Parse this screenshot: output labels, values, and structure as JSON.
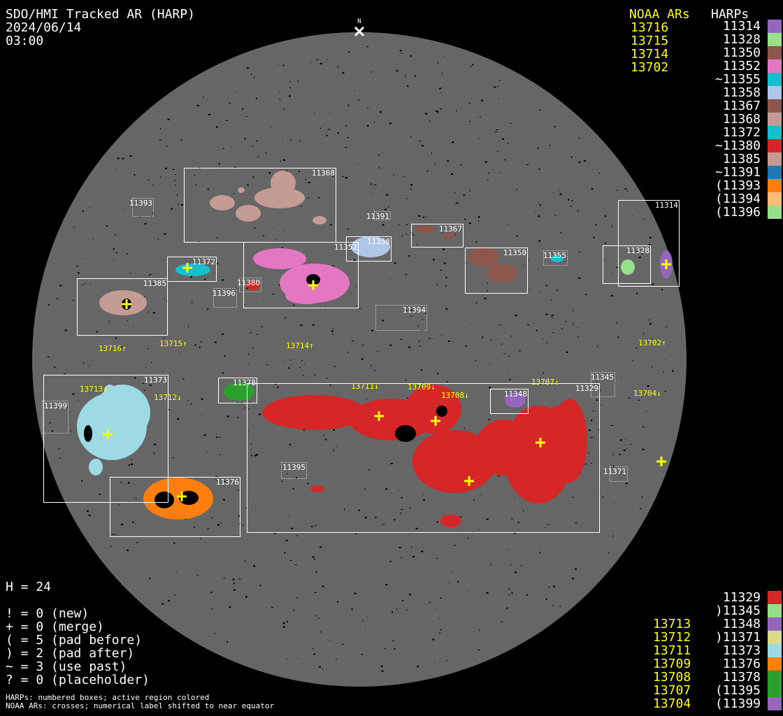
{
  "header": {
    "title": "SDO/HMI Tracked AR (HARP)",
    "date": "2024/06/14",
    "time": "03:00"
  },
  "north_marker": {
    "label": "N",
    "icon": "x-mark-icon"
  },
  "legend_top": {
    "noaa_heading": "NOAA ARs",
    "harps_heading": "HARPs",
    "noaa": [
      "13716",
      "13715",
      "13714",
      "13702"
    ],
    "harps": [
      {
        "label": "11314",
        "color": "#9467bd"
      },
      {
        "label": "11328",
        "color": "#98df8a"
      },
      {
        "label": "11350",
        "color": "#8c564b"
      },
      {
        "label": "11352",
        "color": "#e377c2"
      },
      {
        "label": "~11355",
        "color": "#17becf"
      },
      {
        "label": "11358",
        "color": "#aec7e8"
      },
      {
        "label": "11367",
        "color": "#8c564b"
      },
      {
        "label": "11368",
        "color": "#c49c94"
      },
      {
        "label": "11372",
        "color": "#17becf"
      },
      {
        "label": "~11380",
        "color": "#d62728"
      },
      {
        "label": "11385",
        "color": "#c49c94"
      },
      {
        "label": "~11391",
        "color": "#1f77b4"
      },
      {
        "label": "(11393",
        "color": "#ff7f0e"
      },
      {
        "label": "(11394",
        "color": "#ffbb78"
      },
      {
        "label": "(11396",
        "color": "#98df8a"
      }
    ]
  },
  "legend_bottom": {
    "noaa": [
      "",
      "",
      "13713",
      "13712",
      "13711",
      "13709",
      "13708",
      "13707",
      "13704"
    ],
    "harps": [
      {
        "label": "11329",
        "color": "#d62728"
      },
      {
        "label": ")11345",
        "color": "#98df8a"
      },
      {
        "label": "11348",
        "color": "#9467bd"
      },
      {
        "label": ")11371",
        "color": "#dbdb8d"
      },
      {
        "label": "11373",
        "color": "#9edae5"
      },
      {
        "label": "11376",
        "color": "#ff7f0e"
      },
      {
        "label": "11378",
        "color": "#2ca02c"
      },
      {
        "label": "(11395",
        "color": "#2ca02c"
      },
      {
        "label": "(11399",
        "color": "#9467bd"
      }
    ]
  },
  "stats": {
    "h": "H = 24",
    "lines": [
      "! = 0 (new)",
      "+ = 0 (merge)",
      "( = 5 (pad before)",
      ") = 2 (pad after)",
      "~ = 3 (use past)",
      "? = 0 (placeholder)"
    ]
  },
  "footer": {
    "line1": "HARPs: numbered boxes; active region colored",
    "line2": "NOAA ARs: crosses; numerical label shifted to near equator"
  },
  "colors": {
    "disk": "#666666",
    "box": "#ffffff",
    "noaa": "#ffff00",
    "background": "#000000"
  },
  "disk": {
    "harp_boxes": [
      {
        "label": "11368",
        "style": "solid"
      },
      {
        "label": "11393",
        "style": "dotted"
      },
      {
        "label": "11391",
        "style": "dotted"
      },
      {
        "label": "11352",
        "style": "solid"
      },
      {
        "label": "11358",
        "style": "solid"
      },
      {
        "label": "11367",
        "style": "solid"
      },
      {
        "label": "11350",
        "style": "solid"
      },
      {
        "label": "11355",
        "style": "dotted"
      },
      {
        "label": "11328",
        "style": "solid"
      },
      {
        "label": "11314",
        "style": "solid"
      },
      {
        "label": "11372",
        "style": "solid"
      },
      {
        "label": "11385",
        "style": "solid"
      },
      {
        "label": "11380",
        "style": "dotted"
      },
      {
        "label": "11396",
        "style": "dotted"
      },
      {
        "label": "11394",
        "style": "dotted"
      },
      {
        "label": "11373",
        "style": "solid"
      },
      {
        "label": "11399",
        "style": "dotted"
      },
      {
        "label": "11378",
        "style": "solid"
      },
      {
        "label": "11376",
        "style": "solid"
      },
      {
        "label": "11329",
        "style": "solid"
      },
      {
        "label": "11348",
        "style": "solid"
      },
      {
        "label": "11345",
        "style": "dotted"
      },
      {
        "label": "11395",
        "style": "dotted"
      },
      {
        "label": "11371",
        "style": "dotted"
      }
    ],
    "noaa_labels": [
      {
        "label": "13716↑"
      },
      {
        "label": "13715↑"
      },
      {
        "label": "13714↑"
      },
      {
        "label": "13702↑"
      },
      {
        "label": "13713↓"
      },
      {
        "label": "13712↓"
      },
      {
        "label": "13711↓"
      },
      {
        "label": "13709↓"
      },
      {
        "label": "13708↓"
      },
      {
        "label": "13707↓"
      },
      {
        "label": "13704↓"
      }
    ]
  }
}
